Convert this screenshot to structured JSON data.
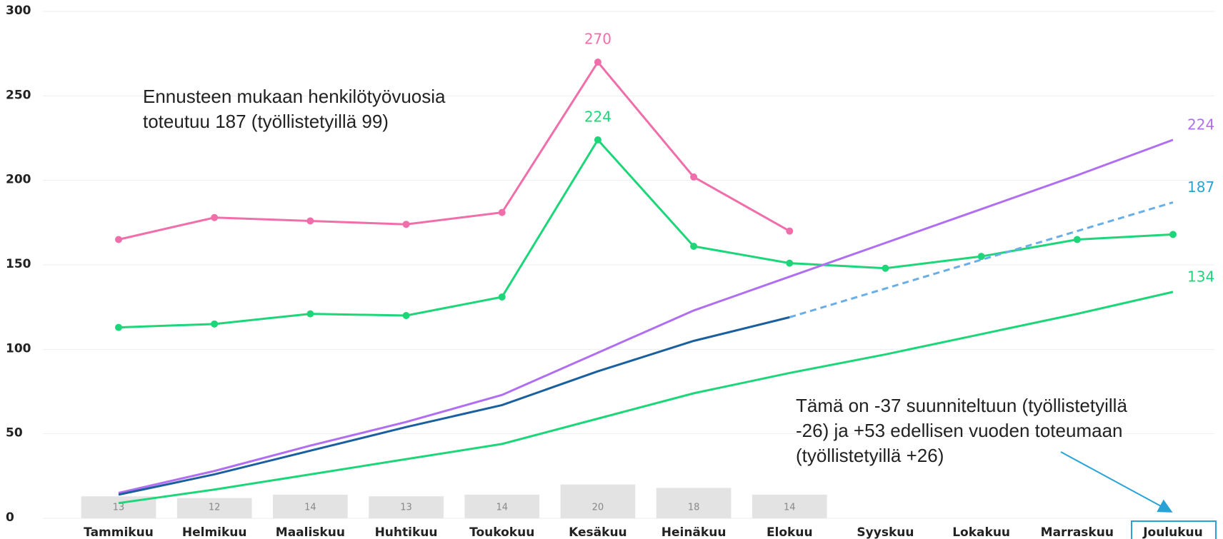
{
  "chart_data": {
    "type": "line",
    "categories": [
      "Tammikuu",
      "Helmikuu",
      "Maaliskuu",
      "Huhtikuu",
      "Toukokuu",
      "Kesäkuu",
      "Heinäkuu",
      "Elokuu",
      "Syyskuu",
      "Lokakuu",
      "Marraskuu",
      "Joulukuu"
    ],
    "ylim": [
      0,
      300
    ],
    "yticks": [
      0,
      50,
      100,
      150,
      200,
      250,
      300
    ],
    "grid": true,
    "bars": {
      "color": "#e3e3e3",
      "values": [
        13,
        12,
        14,
        13,
        14,
        20,
        18,
        14,
        null,
        null,
        null,
        null
      ]
    },
    "series": [
      {
        "color": "#f06eaa",
        "markers": true,
        "values": [
          165,
          178,
          176,
          174,
          181,
          270,
          202,
          170,
          null,
          null,
          null,
          null
        ],
        "value_labels": [
          null,
          null,
          null,
          null,
          null,
          "270",
          null,
          null,
          null,
          null,
          null,
          null
        ]
      },
      {
        "color": "#1ed67a",
        "markers": true,
        "values": [
          113,
          115,
          121,
          120,
          131,
          224,
          161,
          151,
          148,
          155,
          165,
          168
        ],
        "value_labels": [
          null,
          null,
          null,
          null,
          null,
          "224",
          null,
          null,
          null,
          null,
          null,
          null
        ]
      },
      {
        "color": "#b06ef0",
        "markers": false,
        "values": [
          15,
          28,
          43,
          57,
          73,
          98,
          123,
          143,
          163,
          183,
          203,
          224
        ],
        "value_labels": [
          null,
          null,
          null,
          null,
          null,
          null,
          null,
          null,
          null,
          null,
          null,
          "224"
        ]
      },
      {
        "color": "#1a5f9e",
        "markers": false,
        "values": [
          14,
          26,
          40,
          54,
          67,
          87,
          105,
          119,
          null,
          null,
          null,
          null
        ]
      },
      {
        "color": "#6aaee8",
        "label_color": "#29a3d6",
        "dashed": true,
        "markers": false,
        "values": [
          null,
          null,
          null,
          null,
          null,
          null,
          null,
          119,
          136,
          153,
          170,
          187
        ],
        "value_labels": [
          null,
          null,
          null,
          null,
          null,
          null,
          null,
          null,
          null,
          null,
          null,
          "187"
        ]
      },
      {
        "color": "#1ed67a",
        "markers": false,
        "values": [
          9,
          17,
          26,
          35,
          44,
          59,
          74,
          86,
          97,
          109,
          121,
          134
        ],
        "value_labels": [
          null,
          null,
          null,
          null,
          null,
          null,
          null,
          null,
          null,
          null,
          null,
          "134"
        ]
      }
    ],
    "highlight_category": 11,
    "annotations": [
      {
        "lines": [
          "Ennusteen mukaan henkilötyövuosia",
          "toteutuu 187 (työllistetyillä 99)"
        ]
      },
      {
        "lines": [
          "Tämä on -37 suunniteltuun (työllistetyillä",
          "-26) ja +53 edellisen vuoden toteumaan",
          "(työllistetyillä +26)"
        ]
      }
    ]
  }
}
